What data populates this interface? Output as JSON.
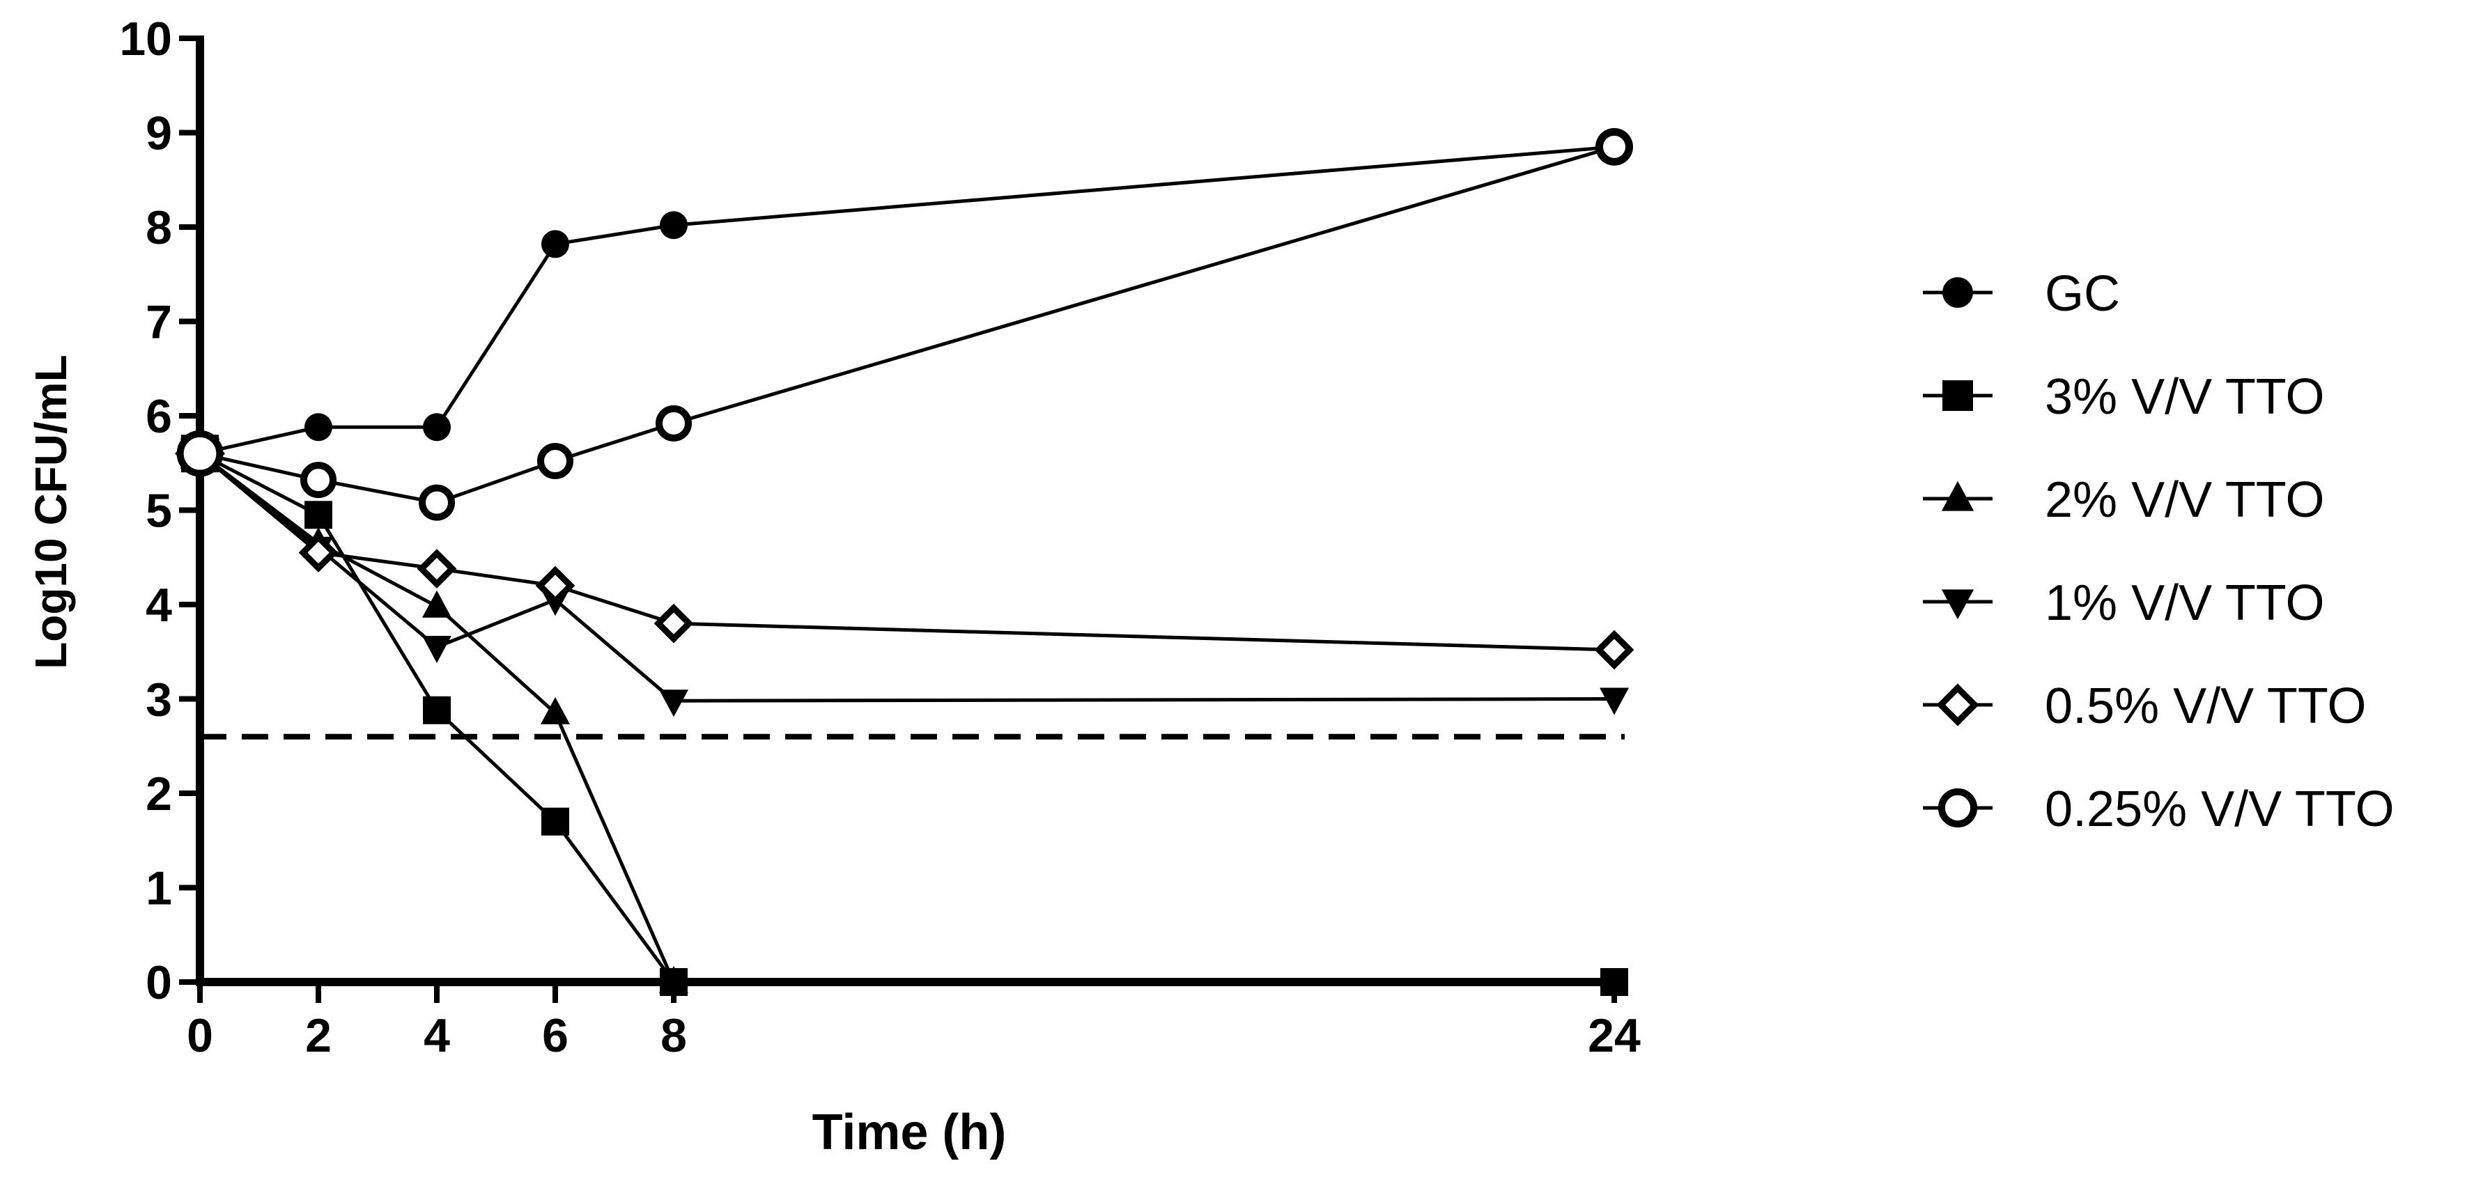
{
  "chart_data": {
    "type": "line",
    "title": "",
    "xlabel": "Time (h)",
    "ylabel": "Log10 CFU/mL",
    "x_ticks": [
      0,
      2,
      4,
      6,
      8,
      24
    ],
    "ylim": [
      0,
      10
    ],
    "y_ticks": [
      0,
      1,
      2,
      3,
      4,
      5,
      6,
      7,
      8,
      9,
      10
    ],
    "x_axis": "categorical-position (0,2,4,6,8 evenly spaced; 24 placed far right)",
    "grid": false,
    "legend_position": "right",
    "reference_line": {
      "y": 2.6,
      "style": "dashed"
    },
    "series": [
      {
        "name": "GC",
        "marker": "filled-circle",
        "points": [
          [
            0,
            5.6
          ],
          [
            2,
            5.88
          ],
          [
            4,
            5.88
          ],
          [
            6,
            7.82
          ],
          [
            8,
            8.02
          ],
          [
            24,
            8.85
          ]
        ]
      },
      {
        "name": "3% V/V TTO",
        "marker": "filled-square",
        "points": [
          [
            0,
            5.6
          ],
          [
            2,
            4.95
          ],
          [
            4,
            2.88
          ],
          [
            6,
            1.7
          ],
          [
            8,
            0
          ],
          [
            24,
            0
          ]
        ]
      },
      {
        "name": "2% V/V TTO",
        "marker": "triangle-up",
        "points": [
          [
            0,
            5.6
          ],
          [
            2,
            4.65
          ],
          [
            4,
            3.98
          ],
          [
            6,
            2.85
          ],
          [
            8,
            0
          ]
        ]
      },
      {
        "name": "1% V/V TTO",
        "marker": "triangle-down",
        "points": [
          [
            0,
            5.6
          ],
          [
            2,
            4.6
          ],
          [
            4,
            3.55
          ],
          [
            6,
            4.05
          ],
          [
            8,
            2.98
          ],
          [
            24,
            3.0
          ]
        ]
      },
      {
        "name": "0.5% V/V TTO",
        "marker": "diamond-open",
        "points": [
          [
            0,
            5.6
          ],
          [
            2,
            4.55
          ],
          [
            4,
            4.38
          ],
          [
            6,
            4.2
          ],
          [
            8,
            3.8
          ],
          [
            24,
            3.52
          ]
        ]
      },
      {
        "name": "0.25% V/V TTO",
        "marker": "circle-open",
        "points": [
          [
            0,
            5.6
          ],
          [
            2,
            5.32
          ],
          [
            4,
            5.08
          ],
          [
            6,
            5.52
          ],
          [
            8,
            5.92
          ],
          [
            24,
            8.85
          ]
        ]
      }
    ]
  }
}
